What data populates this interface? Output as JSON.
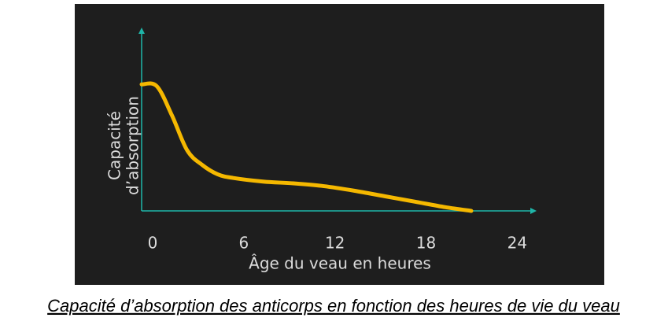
{
  "chart_data": {
    "type": "line",
    "caption": "Capacité d’absorption des anticorps en fonction des heures de vie du veau",
    "x_label": "Âge du veau en heures",
    "y_label": [
      "Capacité",
      "d’absorption"
    ],
    "x": [
      0,
      1,
      2,
      3,
      4,
      5,
      6,
      8,
      10,
      12,
      14,
      16,
      18,
      20,
      21.7
    ],
    "series": [
      {
        "color": "#f5b800",
        "values": [
          69,
          68,
          52,
          33,
          25,
          20,
          18,
          16,
          15,
          13.5,
          11,
          8,
          5,
          2,
          0
        ]
      }
    ],
    "xlim": [
      0,
      26
    ],
    "xticks": [
      0,
      6,
      12,
      18,
      24
    ],
    "ylim": [
      0,
      100
    ],
    "grid": false,
    "axis_color": "#1fb5a8"
  }
}
